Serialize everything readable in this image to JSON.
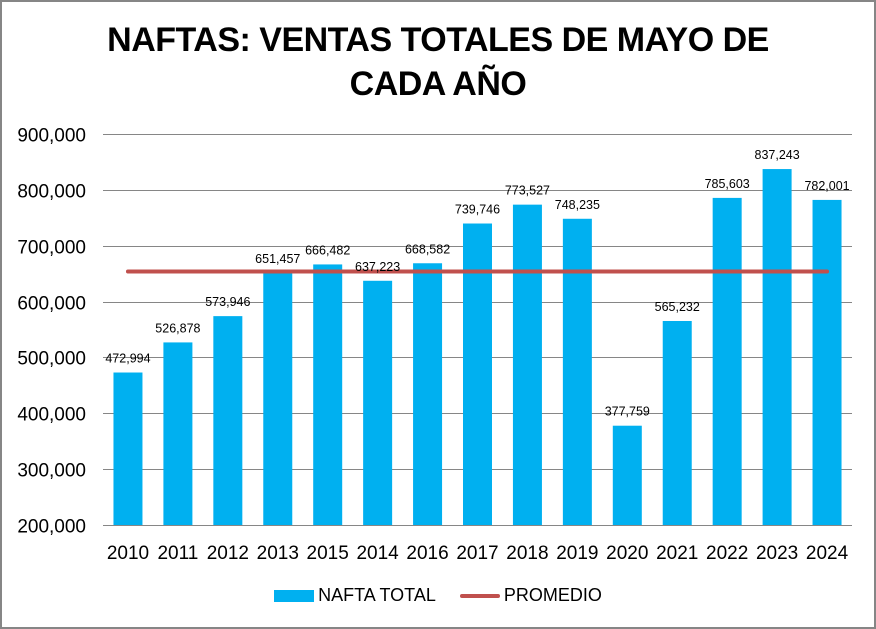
{
  "chart_data": {
    "type": "bar",
    "title": "NAFTAS: VENTAS TOTALES DE MAYO DE CADA AÑO",
    "title_lines": [
      "NAFTAS: VENTAS TOTALES DE MAYO DE",
      "CADA AÑO"
    ],
    "xlabel": "",
    "ylabel": "",
    "ylim": [
      200000,
      900000
    ],
    "yticks": [
      200000,
      300000,
      400000,
      500000,
      600000,
      700000,
      800000,
      900000
    ],
    "ytick_labels": [
      "200,000",
      "300,000",
      "400,000",
      "500,000",
      "600,000",
      "700,000",
      "800,000",
      "900,000"
    ],
    "grid": true,
    "legend_position": "bottom",
    "categories": [
      "2010",
      "2011",
      "2012",
      "2013",
      "2015",
      "2014",
      "2016",
      "2017",
      "2018",
      "2019",
      "2020",
      "2021",
      "2022",
      "2023",
      "2024"
    ],
    "series": [
      {
        "name": "NAFTA TOTAL",
        "type": "bar",
        "color": "#00B0F0",
        "values": [
          472994,
          526878,
          573946,
          651457,
          666482,
          637223,
          668582,
          739746,
          773527,
          748235,
          377759,
          565232,
          785603,
          837243,
          782001
        ],
        "labels": [
          "472,994",
          "526,878",
          "573,946",
          "651,457",
          "666,482",
          "637,223",
          "668,582",
          "739,746",
          "773,527",
          "748,235",
          "377,759",
          "565,232",
          "785,603",
          "837,243",
          "782,001"
        ]
      },
      {
        "name": "PROMEDIO",
        "type": "line",
        "color": "#C0504D",
        "values": [
          653861,
          653861,
          653861,
          653861,
          653861,
          653861,
          653861,
          653861,
          653861,
          653861,
          653861,
          653861,
          653861,
          653861,
          653861
        ]
      }
    ]
  }
}
